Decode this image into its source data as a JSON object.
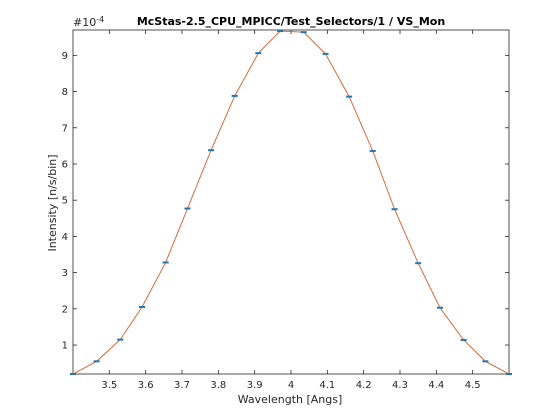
{
  "chart_data": {
    "type": "line",
    "title": "McStas-2.5_CPU_MPICC/Test_Selectors/1 / VS_Mon",
    "xlabel": "Wavelength [Angs]",
    "ylabel": "Intensity [n/s/bin]",
    "exponent_label": "#10",
    "exponent_power": "-4",
    "xlim": [
      3.4,
      4.6
    ],
    "ylim": [
      0.2,
      9.7
    ],
    "xticks": [
      3.5,
      3.6,
      3.7,
      3.8,
      3.9,
      4.0,
      4.1,
      4.2,
      4.3,
      4.4,
      4.5
    ],
    "xtick_labels": [
      "3.5",
      "3.6",
      "3.7",
      "3.8",
      "3.9",
      "4",
      "4.1",
      "4.2",
      "4.3",
      "4.4",
      "4.5"
    ],
    "yticks": [
      1,
      2,
      3,
      4,
      5,
      6,
      7,
      8,
      9
    ],
    "ytick_labels": [
      "1",
      "2",
      "3",
      "4",
      "5",
      "6",
      "7",
      "8",
      "9"
    ],
    "grid": false,
    "series": [
      {
        "color": "#e05a2b",
        "marker_color": "#1f77b4",
        "x": [
          3.4,
          3.465,
          3.53,
          3.59,
          3.655,
          3.715,
          3.78,
          3.845,
          3.91,
          3.97,
          4.035,
          4.095,
          4.16,
          4.225,
          4.285,
          4.35,
          4.41,
          4.475,
          4.535,
          4.6
        ],
        "values": [
          0.2,
          0.55,
          1.15,
          2.05,
          3.28,
          4.77,
          6.38,
          7.88,
          9.06,
          9.67,
          9.64,
          9.04,
          7.86,
          6.36,
          4.75,
          3.26,
          2.03,
          1.14,
          0.55,
          0.2
        ]
      }
    ]
  }
}
